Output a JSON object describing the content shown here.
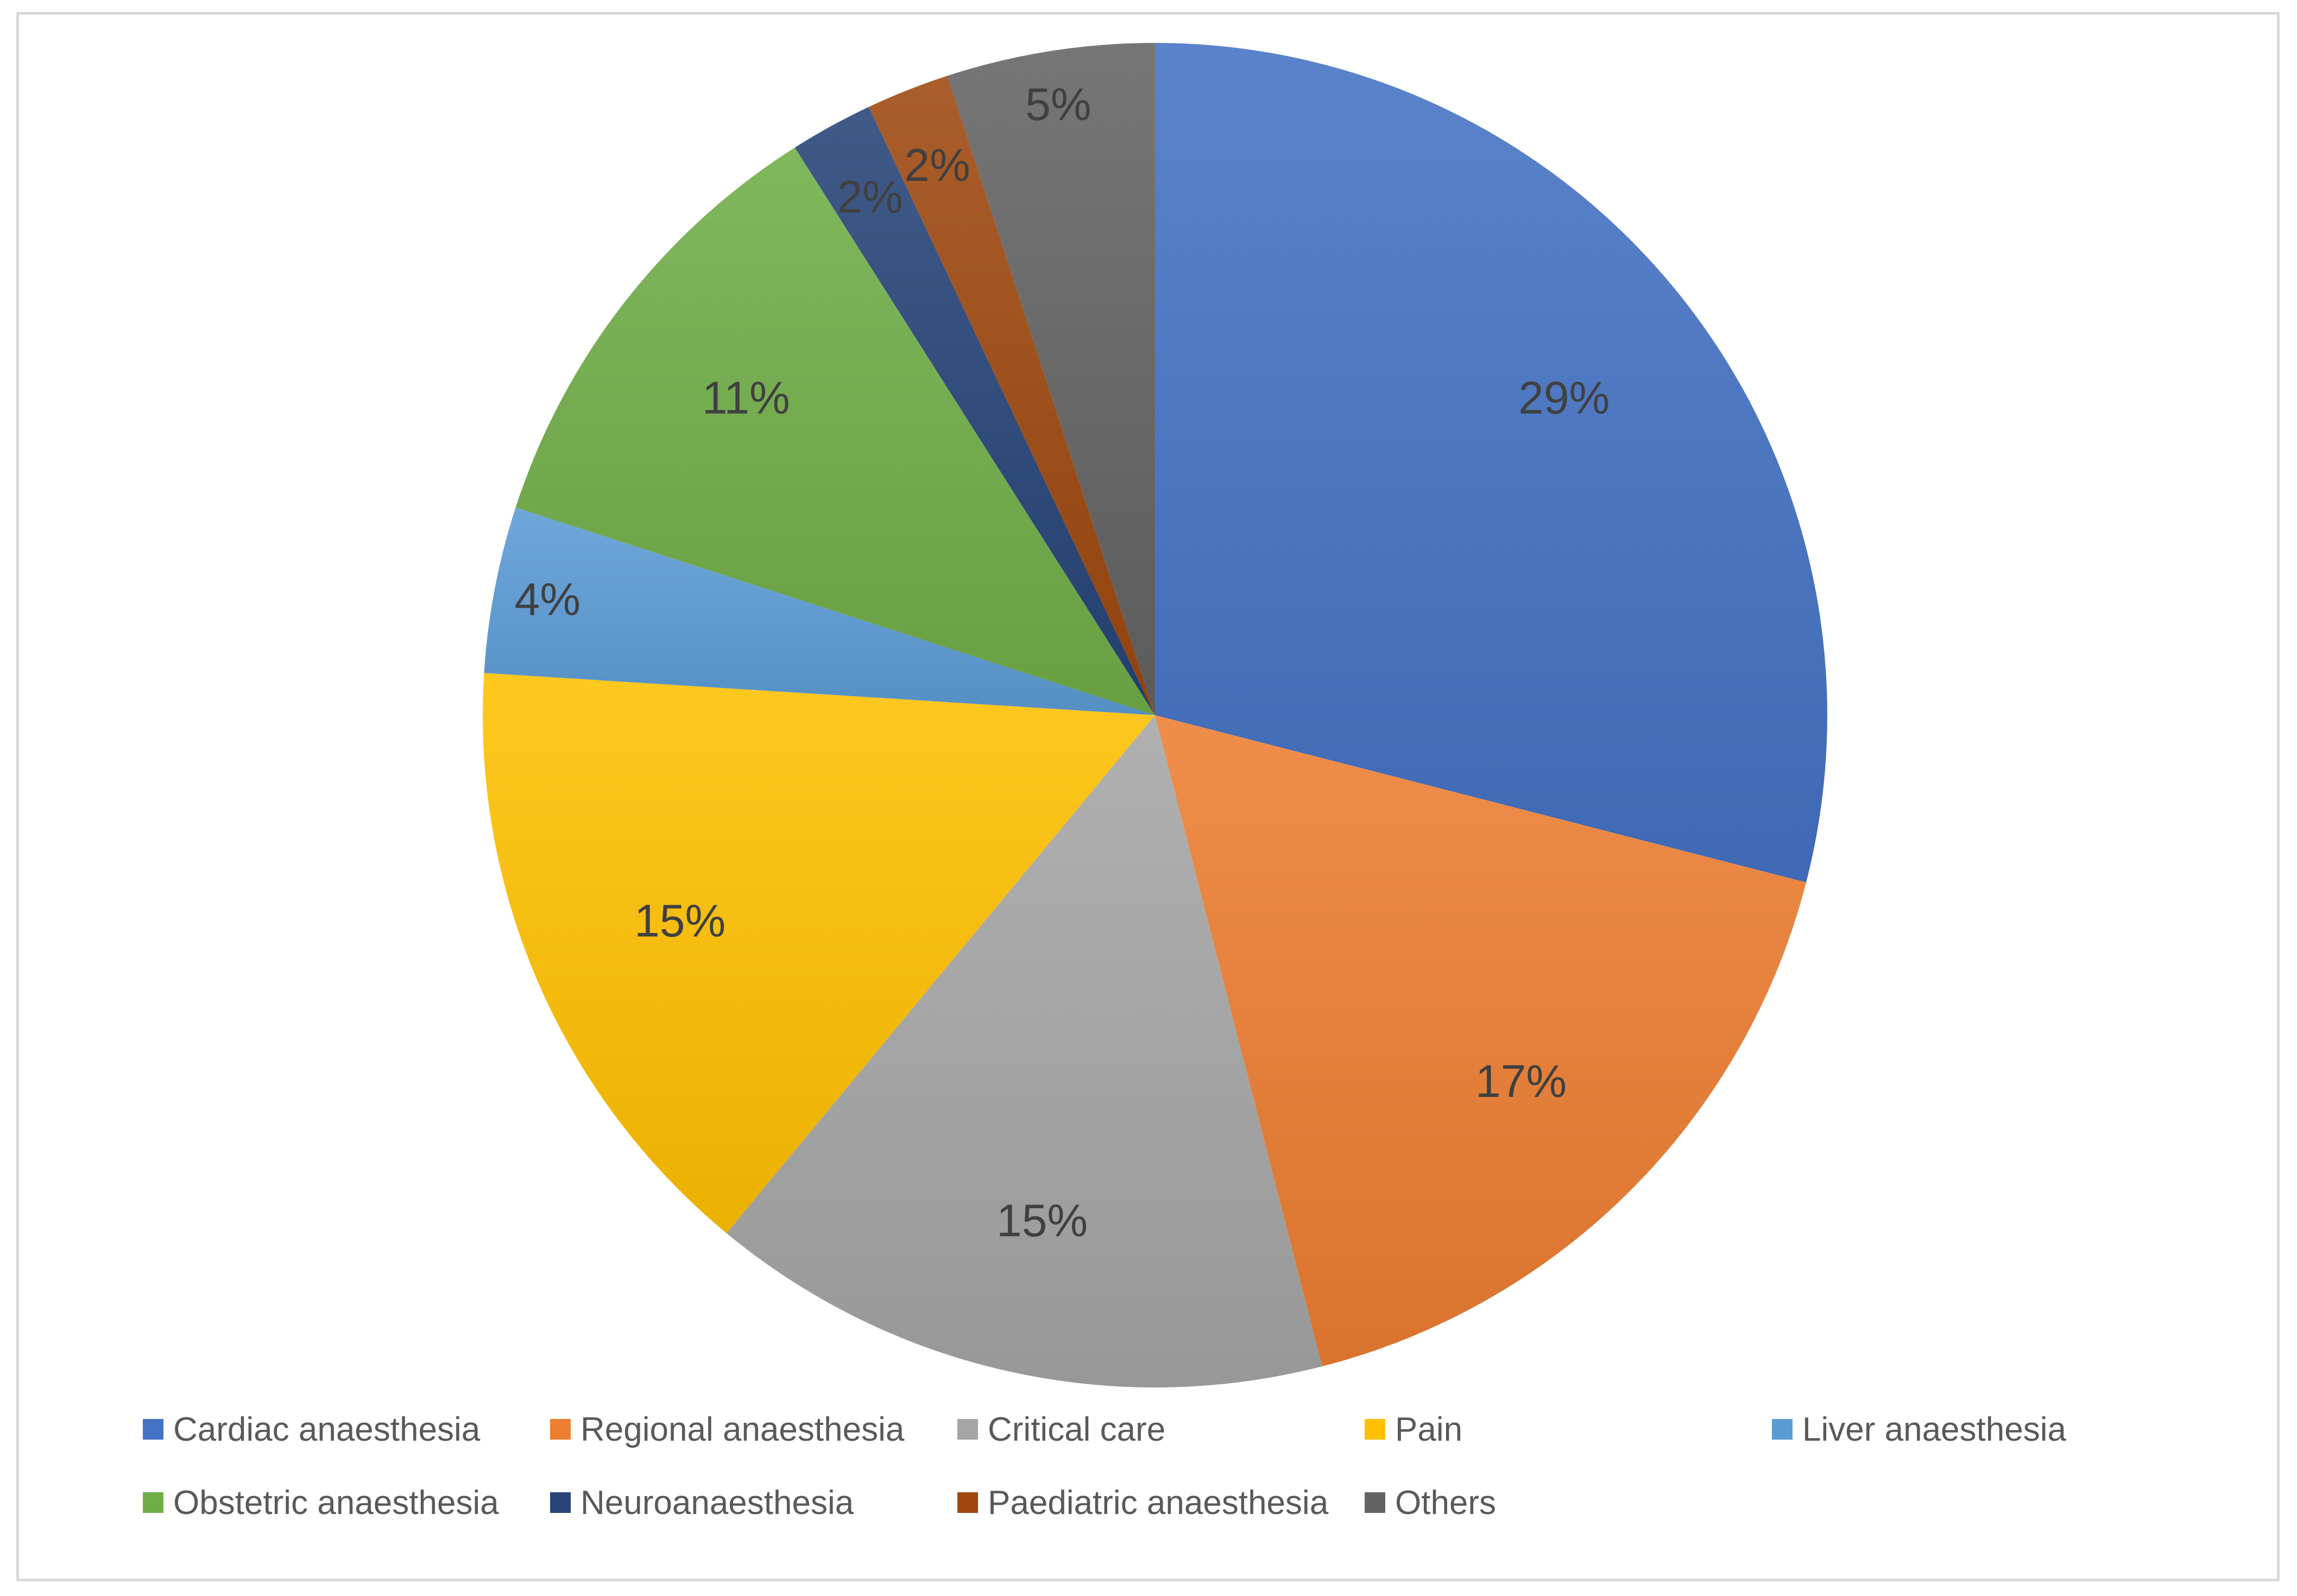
{
  "chart_data": {
    "type": "pie",
    "title": "",
    "start_angle_deg": 0,
    "direction": "clockwise",
    "legend_position": "bottom",
    "slices": [
      {
        "name": "Cardiac anaesthesia",
        "value": 29,
        "label": "29%",
        "color": "#4472c4"
      },
      {
        "name": "Regional anaesthesia",
        "value": 17,
        "label": "17%",
        "color": "#ed7d31"
      },
      {
        "name": "Critical care",
        "value": 15,
        "label": "15%",
        "color": "#a5a5a5"
      },
      {
        "name": "Pain",
        "value": 15,
        "label": "15%",
        "color": "#ffc000"
      },
      {
        "name": "Liver anaesthesia",
        "value": 4,
        "label": "4%",
        "color": "#5b9bd5"
      },
      {
        "name": "Obstetric anaesthesia",
        "value": 11,
        "label": "11%",
        "color": "#70ad47"
      },
      {
        "name": "Neuroanaesthesia",
        "value": 2,
        "label": "2%",
        "color": "#264478"
      },
      {
        "name": "Paediatric anaesthesia",
        "value": 2,
        "label": "2%",
        "color": "#9e480e"
      },
      {
        "name": "Others",
        "value": 5,
        "label": "5%",
        "color": "#636363"
      }
    ]
  }
}
